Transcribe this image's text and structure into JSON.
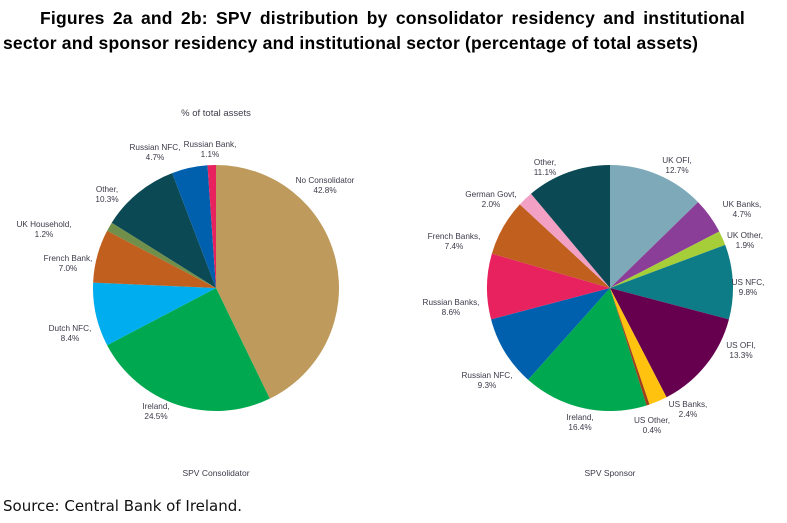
{
  "title": "Figures 2a and 2b: SPV distribution by consolidator residency and institutional sector and sponsor residency and institutional sector (percentage of total assets)",
  "source": "Source: Central Bank of Ireland.",
  "chart_data": [
    {
      "type": "pie",
      "title": "% of total assets",
      "caption": "SPV Consolidator",
      "unit": "%",
      "direction": "clockwise from 12 o'clock",
      "slices": [
        {
          "label": "No Consolidator",
          "value": 42.8,
          "color": "#BE9A5C"
        },
        {
          "label": "Ireland",
          "value": 24.5,
          "color": "#00A94F"
        },
        {
          "label": "Dutch NFC",
          "value": 8.4,
          "color": "#00AEEF"
        },
        {
          "label": "French Bank",
          "value": 7.0,
          "color": "#C05F1E"
        },
        {
          "label": "UK Household",
          "value": 1.2,
          "color": "#6F8F4A"
        },
        {
          "label": "Other",
          "value": 10.3,
          "color": "#0B4A55"
        },
        {
          "label": "Russian NFC",
          "value": 4.7,
          "color": "#0060AE"
        },
        {
          "label": "Russian Bank",
          "value": 1.1,
          "color": "#E8215F"
        }
      ]
    },
    {
      "type": "pie",
      "title": "",
      "caption": "SPV Sponsor",
      "unit": "%",
      "direction": "clockwise from 12 o'clock",
      "slices": [
        {
          "label": "UK OFI",
          "value": 12.7,
          "color": "#7EA9B9"
        },
        {
          "label": "UK Banks",
          "value": 4.7,
          "color": "#8A3E97"
        },
        {
          "label": "UK Other",
          "value": 1.9,
          "color": "#A6CE39"
        },
        {
          "label": "US NFC",
          "value": 9.8,
          "color": "#0E7C86"
        },
        {
          "label": "US OFI",
          "value": 13.3,
          "color": "#66004E"
        },
        {
          "label": "US Banks",
          "value": 2.4,
          "color": "#FFC20E"
        },
        {
          "label": "US Other",
          "value": 0.4,
          "color": "#A0401A"
        },
        {
          "label": "Ireland",
          "value": 16.4,
          "color": "#00A94F"
        },
        {
          "label": "Russian NFC",
          "value": 9.3,
          "color": "#0060AE"
        },
        {
          "label": "Russian Banks",
          "value": 8.6,
          "color": "#E8215F"
        },
        {
          "label": "French Banks",
          "value": 7.4,
          "color": "#C05F1E"
        },
        {
          "label": "German Govt",
          "value": 2.0,
          "color": "#F2A0C4"
        },
        {
          "label": "Other",
          "value": 11.1,
          "color": "#0B4A55"
        }
      ]
    }
  ]
}
